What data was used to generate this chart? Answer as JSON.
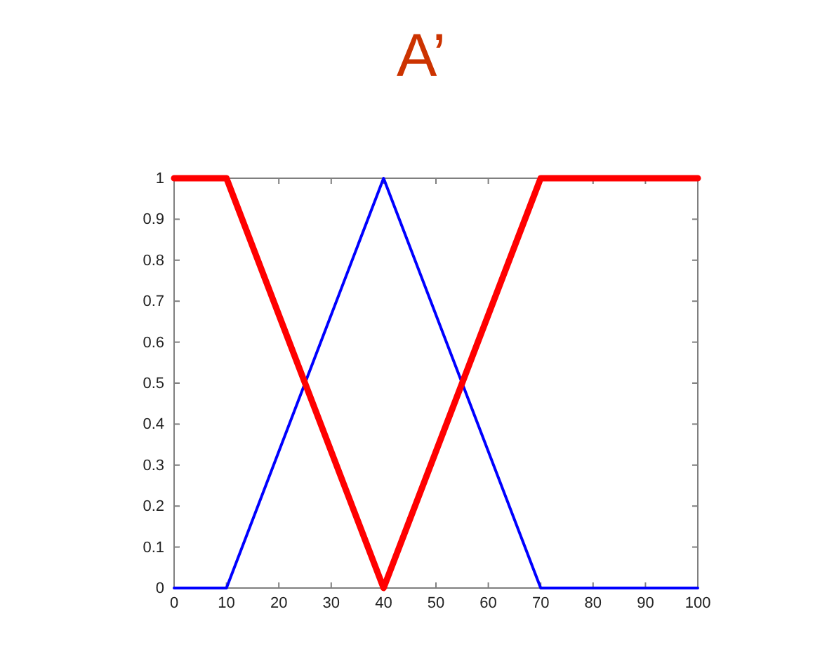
{
  "chart_data": {
    "type": "line",
    "title": "A’",
    "x": [
      0,
      10,
      40,
      70,
      100
    ],
    "series": [
      {
        "color": "#ff0000",
        "values": [
          1,
          1,
          0,
          1,
          1
        ]
      },
      {
        "color": "#0000ff",
        "values": [
          0,
          0,
          1,
          0,
          0
        ]
      }
    ],
    "xlim": [
      0,
      100
    ],
    "xticks": [
      0,
      10,
      20,
      30,
      40,
      50,
      60,
      70,
      80,
      90,
      100
    ],
    "ylim": [
      0,
      1
    ],
    "yticks": [
      0,
      0.1,
      0.2,
      0.3,
      0.4,
      0.5,
      0.6,
      0.7,
      0.8,
      0.9,
      1
    ],
    "grid": false
  }
}
